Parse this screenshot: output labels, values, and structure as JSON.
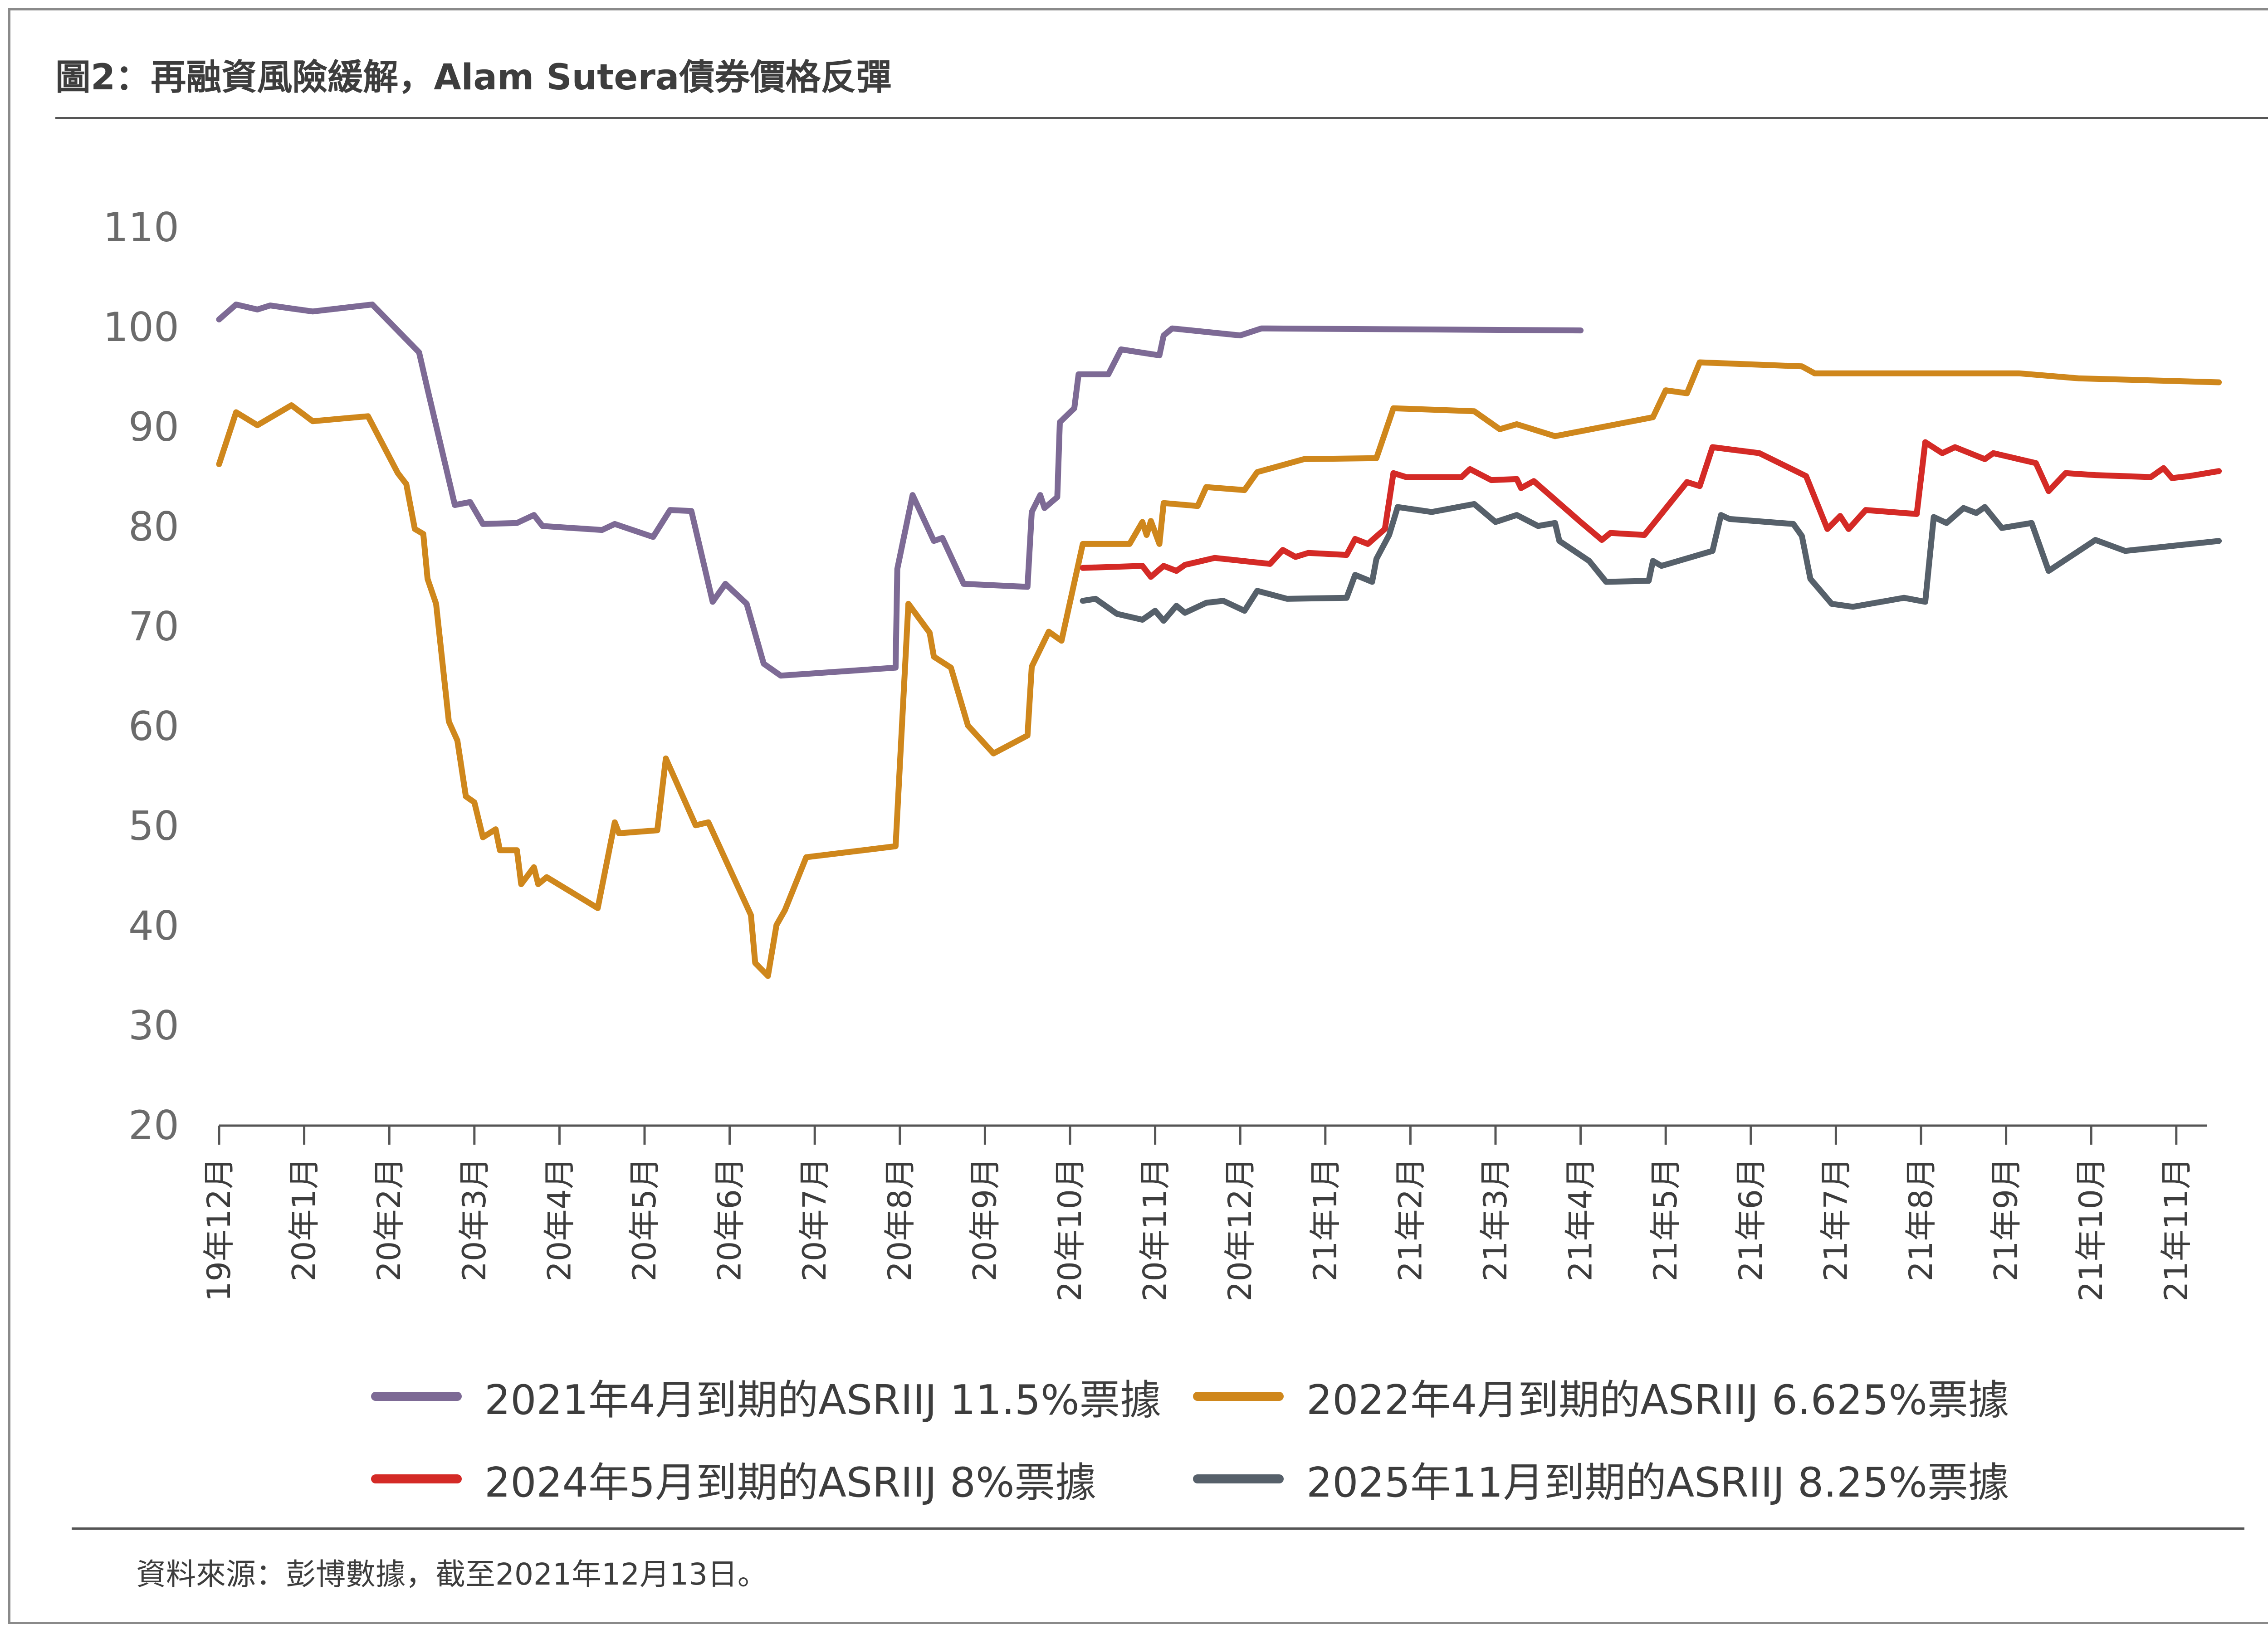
{
  "title": "圖2：再融資風險緩解，Alam Sutera債券價格反彈",
  "source": "資料來源：彭博數據，截至2021年12月13日。",
  "chart_data": {
    "type": "line",
    "title": "圖2：再融資風險緩解，Alam Sutera債券價格反彈",
    "xlabel": "",
    "ylabel": "",
    "ylim": [
      20,
      110
    ],
    "yticks": [
      20,
      30,
      40,
      50,
      60,
      70,
      80,
      90,
      100,
      110
    ],
    "xticks": [
      "19年12月",
      "20年1月",
      "20年2月",
      "20年3月",
      "20年4月",
      "20年5月",
      "20年6月",
      "20年7月",
      "20年8月",
      "20年9月",
      "20年10月",
      "20年11月",
      "20年12月",
      "21年1月",
      "21年2月",
      "21年3月",
      "21年4月",
      "21年5月",
      "21年6月",
      "21年7月",
      "21年8月",
      "21年9月",
      "21年10月",
      "21年11月"
    ],
    "x_unit": "month index (0 = 19年12月)",
    "grid": false,
    "legend_position": "bottom",
    "series": [
      {
        "name": "2021年4月到期的ASRIIJ 11.5%票據",
        "color": "#7d6a95",
        "points": [
          [
            0.0,
            100.8
          ],
          [
            0.2,
            102.3
          ],
          [
            0.45,
            101.8
          ],
          [
            0.6,
            102.2
          ],
          [
            1.1,
            101.6
          ],
          [
            1.8,
            102.3
          ],
          [
            2.35,
            97.5
          ],
          [
            2.45,
            93.8
          ],
          [
            2.77,
            82.2
          ],
          [
            2.95,
            82.5
          ],
          [
            3.1,
            80.3
          ],
          [
            3.5,
            80.4
          ],
          [
            3.7,
            81.2
          ],
          [
            3.8,
            80.1
          ],
          [
            4.5,
            79.7
          ],
          [
            4.65,
            80.3
          ],
          [
            5.1,
            79.0
          ],
          [
            5.3,
            81.7
          ],
          [
            5.55,
            81.6
          ],
          [
            5.8,
            72.5
          ],
          [
            5.95,
            74.3
          ],
          [
            6.2,
            72.3
          ],
          [
            6.4,
            66.3
          ],
          [
            6.6,
            65.1
          ],
          [
            7.95,
            65.9
          ],
          [
            7.97,
            75.8
          ],
          [
            8.15,
            83.2
          ],
          [
            8.4,
            78.6
          ],
          [
            8.5,
            78.9
          ],
          [
            8.75,
            74.3
          ],
          [
            9.5,
            74.0
          ],
          [
            9.55,
            81.5
          ],
          [
            9.65,
            83.2
          ],
          [
            9.7,
            81.9
          ],
          [
            9.85,
            83.0
          ],
          [
            9.88,
            90.5
          ],
          [
            10.05,
            91.9
          ],
          [
            10.1,
            95.3
          ],
          [
            10.45,
            95.3
          ],
          [
            10.6,
            97.8
          ],
          [
            11.05,
            97.2
          ],
          [
            11.1,
            99.2
          ],
          [
            11.2,
            99.9
          ],
          [
            12.0,
            99.2
          ],
          [
            12.25,
            99.9
          ],
          [
            16.0,
            99.7
          ]
        ]
      },
      {
        "name": "2022年4月到期的ASRIIJ 6.625%票據",
        "color": "#cf871c",
        "points": [
          [
            0.0,
            86.3
          ],
          [
            0.2,
            91.5
          ],
          [
            0.45,
            90.2
          ],
          [
            0.85,
            92.2
          ],
          [
            1.1,
            90.6
          ],
          [
            1.75,
            91.1
          ],
          [
            2.1,
            85.4
          ],
          [
            2.2,
            84.3
          ],
          [
            2.3,
            79.8
          ],
          [
            2.4,
            79.3
          ],
          [
            2.45,
            74.8
          ],
          [
            2.55,
            72.3
          ],
          [
            2.7,
            60.5
          ],
          [
            2.8,
            58.6
          ],
          [
            2.9,
            53.0
          ],
          [
            3.0,
            52.4
          ],
          [
            3.1,
            48.9
          ],
          [
            3.25,
            49.7
          ],
          [
            3.3,
            47.6
          ],
          [
            3.5,
            47.6
          ],
          [
            3.55,
            44.2
          ],
          [
            3.7,
            45.9
          ],
          [
            3.75,
            44.2
          ],
          [
            3.85,
            44.9
          ],
          [
            4.45,
            41.8
          ],
          [
            4.65,
            50.4
          ],
          [
            4.7,
            49.3
          ],
          [
            5.15,
            49.6
          ],
          [
            5.25,
            56.8
          ],
          [
            5.6,
            50.1
          ],
          [
            5.75,
            50.4
          ],
          [
            6.25,
            41.1
          ],
          [
            6.3,
            36.3
          ],
          [
            6.45,
            35.0
          ],
          [
            6.55,
            40.1
          ],
          [
            6.65,
            41.6
          ],
          [
            6.9,
            46.9
          ],
          [
            7.95,
            48.0
          ],
          [
            8.1,
            72.3
          ],
          [
            8.35,
            69.4
          ],
          [
            8.4,
            67.0
          ],
          [
            8.6,
            65.9
          ],
          [
            8.8,
            60.1
          ],
          [
            9.1,
            57.3
          ],
          [
            9.5,
            59.1
          ],
          [
            9.55,
            66.0
          ],
          [
            9.75,
            69.5
          ],
          [
            9.9,
            68.6
          ],
          [
            10.15,
            78.3
          ],
          [
            10.7,
            78.3
          ],
          [
            10.85,
            80.5
          ],
          [
            10.9,
            79.2
          ],
          [
            10.95,
            80.6
          ],
          [
            11.05,
            78.3
          ],
          [
            11.1,
            82.4
          ],
          [
            11.5,
            82.1
          ],
          [
            11.6,
            84.0
          ],
          [
            12.05,
            83.7
          ],
          [
            12.2,
            85.5
          ],
          [
            12.75,
            86.8
          ],
          [
            13.6,
            86.9
          ],
          [
            13.8,
            91.9
          ],
          [
            14.75,
            91.6
          ],
          [
            15.05,
            89.8
          ],
          [
            15.25,
            90.3
          ],
          [
            15.7,
            89.1
          ],
          [
            16.85,
            91.0
          ],
          [
            17.0,
            93.7
          ],
          [
            17.25,
            93.4
          ],
          [
            17.4,
            96.5
          ],
          [
            18.6,
            96.1
          ],
          [
            18.75,
            95.4
          ],
          [
            20.95,
            95.4
          ],
          [
            21.15,
            95.4
          ],
          [
            21.85,
            94.9
          ],
          [
            23.5,
            94.5
          ]
        ]
      },
      {
        "name": "2024年5月到期的ASRIIJ 8%票據",
        "color": "#d42a26",
        "points": [
          [
            10.15,
            75.9
          ],
          [
            10.85,
            76.1
          ],
          [
            10.95,
            75.0
          ],
          [
            11.1,
            76.1
          ],
          [
            11.25,
            75.6
          ],
          [
            11.35,
            76.2
          ],
          [
            11.5,
            76.5
          ],
          [
            11.7,
            76.9
          ],
          [
            12.35,
            76.3
          ],
          [
            12.5,
            77.7
          ],
          [
            12.65,
            77.0
          ],
          [
            12.8,
            77.4
          ],
          [
            13.25,
            77.2
          ],
          [
            13.35,
            78.8
          ],
          [
            13.5,
            78.3
          ],
          [
            13.7,
            79.8
          ],
          [
            13.8,
            85.4
          ],
          [
            13.95,
            85.0
          ],
          [
            14.6,
            85.0
          ],
          [
            14.7,
            85.8
          ],
          [
            14.95,
            84.7
          ],
          [
            15.25,
            84.8
          ],
          [
            15.3,
            83.9
          ],
          [
            15.45,
            84.6
          ],
          [
            16.0,
            80.5
          ],
          [
            16.25,
            78.7
          ],
          [
            16.35,
            79.4
          ],
          [
            16.75,
            79.2
          ],
          [
            17.25,
            84.5
          ],
          [
            17.4,
            84.1
          ],
          [
            17.55,
            88.0
          ],
          [
            18.1,
            87.4
          ],
          [
            18.65,
            85.1
          ],
          [
            18.9,
            79.8
          ],
          [
            19.05,
            81.1
          ],
          [
            19.15,
            79.8
          ],
          [
            19.35,
            81.7
          ],
          [
            19.95,
            81.3
          ],
          [
            20.05,
            88.5
          ],
          [
            20.25,
            87.4
          ],
          [
            20.4,
            88.0
          ],
          [
            20.75,
            86.8
          ],
          [
            20.85,
            87.4
          ],
          [
            21.35,
            86.4
          ],
          [
            21.5,
            83.6
          ],
          [
            21.7,
            85.4
          ],
          [
            22.05,
            85.2
          ],
          [
            22.7,
            85.0
          ],
          [
            22.85,
            85.9
          ],
          [
            22.95,
            84.9
          ],
          [
            23.15,
            85.1
          ],
          [
            23.5,
            85.6
          ]
        ]
      },
      {
        "name": "2025年11月到期的ASRIIJ 8.25%票據",
        "color": "#56606a",
        "points": [
          [
            10.15,
            72.6
          ],
          [
            10.3,
            72.8
          ],
          [
            10.55,
            71.3
          ],
          [
            10.85,
            70.7
          ],
          [
            11.0,
            71.6
          ],
          [
            11.1,
            70.6
          ],
          [
            11.25,
            72.1
          ],
          [
            11.35,
            71.4
          ],
          [
            11.6,
            72.4
          ],
          [
            11.8,
            72.6
          ],
          [
            12.05,
            71.6
          ],
          [
            12.2,
            73.6
          ],
          [
            12.55,
            72.8
          ],
          [
            13.25,
            72.9
          ],
          [
            13.35,
            75.2
          ],
          [
            13.55,
            74.5
          ],
          [
            13.6,
            76.8
          ],
          [
            13.75,
            79.2
          ],
          [
            13.85,
            82.0
          ],
          [
            14.25,
            81.5
          ],
          [
            14.75,
            82.3
          ],
          [
            15.0,
            80.5
          ],
          [
            15.25,
            81.2
          ],
          [
            15.5,
            80.1
          ],
          [
            15.7,
            80.4
          ],
          [
            15.75,
            78.6
          ],
          [
            16.1,
            76.6
          ],
          [
            16.3,
            74.5
          ],
          [
            16.8,
            74.6
          ],
          [
            16.85,
            76.6
          ],
          [
            16.95,
            76.1
          ],
          [
            17.55,
            77.6
          ],
          [
            17.65,
            81.2
          ],
          [
            17.75,
            80.8
          ],
          [
            18.5,
            80.3
          ],
          [
            18.6,
            79.1
          ],
          [
            18.7,
            74.8
          ],
          [
            18.95,
            72.3
          ],
          [
            19.2,
            72.0
          ],
          [
            19.8,
            72.9
          ],
          [
            20.05,
            72.5
          ],
          [
            20.15,
            81.0
          ],
          [
            20.3,
            80.4
          ],
          [
            20.5,
            81.9
          ],
          [
            20.65,
            81.4
          ],
          [
            20.75,
            82.0
          ],
          [
            20.95,
            79.9
          ],
          [
            21.3,
            80.4
          ],
          [
            21.5,
            75.6
          ],
          [
            22.05,
            78.7
          ],
          [
            22.4,
            77.6
          ],
          [
            23.5,
            78.6
          ]
        ]
      }
    ]
  }
}
